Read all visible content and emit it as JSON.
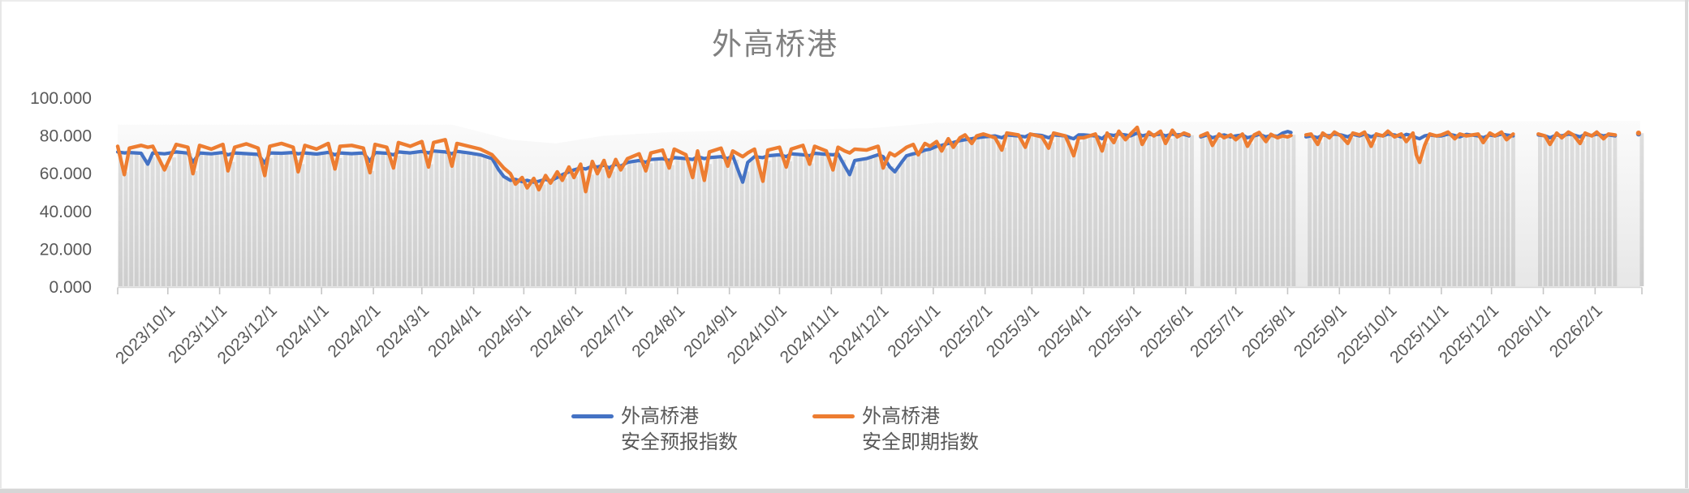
{
  "window": {
    "background": "#ffffff",
    "border_color": "#d9d9d9"
  },
  "chart": {
    "title": "外高桥港",
    "title_color": "#808080",
    "axis_label_color": "#595959",
    "axis_line_color": "#d9d9d9",
    "tick_color": "#c6c6c6",
    "column_color_top": "#dedede",
    "column_color_bottom": "#cdcdcd",
    "band_color_top": "#fbfbfb",
    "band_color_bottom": "#e7e7e7",
    "y_axis": {
      "min": 0,
      "max": 100,
      "tick_values": [
        100,
        80,
        60,
        40,
        20,
        0
      ],
      "tick_labels": [
        "100.000",
        "80.000",
        "60.000",
        "40.000",
        "20.000",
        "0.000"
      ]
    },
    "x_axis": {
      "labels": [
        "2023/10/1",
        "2023/11/1",
        "2023/12/1",
        "2024/1/1",
        "2024/2/1",
        "2024/3/1",
        "2024/4/1",
        "2024/5/1",
        "2024/6/1",
        "2024/7/1",
        "2024/8/1",
        "2024/9/1",
        "2024/10/1",
        "2024/11/1",
        "2024/12/1",
        "2025/1/1",
        "2025/2/1",
        "2025/3/1",
        "2025/4/1",
        "2025/5/1",
        "2025/6/1",
        "2025/7/1",
        "2025/8/1",
        "2025/9/1",
        "2025/10/1",
        "2025/11/1",
        "2025/12/1",
        "2026/1/1",
        "2026/2/1"
      ],
      "label_day_offsets": [
        30,
        61,
        91,
        122,
        153,
        182,
        213,
        243,
        274,
        304,
        335,
        366,
        396,
        427,
        457,
        488,
        519,
        547,
        578,
        608,
        639,
        669,
        700,
        731,
        761,
        792,
        822,
        853,
        884
      ],
      "tick_day_offsets": [
        0,
        30,
        61,
        91,
        122,
        153,
        182,
        213,
        243,
        274,
        304,
        335,
        366,
        396,
        427,
        457,
        488,
        519,
        547,
        578,
        608,
        639,
        669,
        700,
        731,
        761,
        792,
        822,
        853,
        884,
        912
      ],
      "domain_days": [
        0,
        912
      ],
      "domain_note": "day index 0 = 2023/9/1, day 912 = 2026/3/1"
    },
    "legend": {
      "items": [
        {
          "line1": "外高桥港",
          "line2": "安全预报指数",
          "color": "#4472C4"
        },
        {
          "line1": "外高桥港",
          "line2": "安全即期指数",
          "color": "#ED7D31"
        }
      ]
    }
  },
  "chart_data": {
    "type": "line",
    "title": "外高桥港",
    "ylim": [
      0,
      100
    ],
    "x_axis_note": "daily index data; day 0 = 2023-09-01; data runs to 2026-02-28 (day 910) with gaps",
    "legend_position": "bottom",
    "grid": "none",
    "series": [
      {
        "name": "外高桥港安全预报指数",
        "color": "#4472C4"
      },
      {
        "name": "外高桥港安全即期指数",
        "color": "#ED7D31"
      }
    ],
    "rows_format": [
      "day_index",
      "外高桥港安全预报指数",
      "外高桥港安全即期指数"
    ],
    "rows": [
      [
        0,
        71.5,
        74.5
      ],
      [
        4,
        71,
        59.5
      ],
      [
        7,
        71.2,
        73.5
      ],
      [
        14,
        70.8,
        75
      ],
      [
        18,
        65,
        74
      ],
      [
        21,
        71,
        74.5
      ],
      [
        28,
        70.5,
        62
      ],
      [
        35,
        71.5,
        75.5
      ],
      [
        42,
        70.9,
        74
      ],
      [
        45,
        66,
        60
      ],
      [
        49,
        71,
        75
      ],
      [
        56,
        70.5,
        73
      ],
      [
        63,
        71.2,
        75.5
      ],
      [
        66,
        70,
        61.5
      ],
      [
        70,
        71,
        74
      ],
      [
        77,
        70.6,
        75.8
      ],
      [
        84,
        70.2,
        73.5
      ],
      [
        88,
        65.5,
        59
      ],
      [
        91,
        71,
        74.5
      ],
      [
        98,
        70.8,
        76
      ],
      [
        105,
        71.2,
        74
      ],
      [
        108,
        70.5,
        61
      ],
      [
        112,
        71,
        75
      ],
      [
        119,
        70.4,
        73
      ],
      [
        126,
        71.3,
        76
      ],
      [
        130,
        70,
        62.5
      ],
      [
        133,
        71,
        74.5
      ],
      [
        140,
        70.6,
        75
      ],
      [
        147,
        71,
        73.5
      ],
      [
        151,
        66.5,
        60.5
      ],
      [
        154,
        71.2,
        75.5
      ],
      [
        161,
        70.8,
        74
      ],
      [
        165,
        70,
        63
      ],
      [
        168,
        71.5,
        76.5
      ],
      [
        175,
        71,
        74.5
      ],
      [
        182,
        71.8,
        77
      ],
      [
        186,
        71,
        63.5
      ],
      [
        189,
        72,
        76.5
      ],
      [
        196,
        71.5,
        78
      ],
      [
        200,
        70.5,
        64
      ],
      [
        203,
        71.8,
        76
      ],
      [
        210,
        71,
        74.5
      ],
      [
        217,
        70,
        73
      ],
      [
        224,
        68,
        70
      ],
      [
        228,
        62,
        66
      ],
      [
        231,
        58.5,
        63
      ],
      [
        235,
        56.5,
        60
      ],
      [
        238,
        57,
        54.5
      ],
      [
        242,
        55.8,
        58
      ],
      [
        245,
        56.5,
        52.5
      ],
      [
        249,
        55.5,
        57.5
      ],
      [
        252,
        56,
        51.5
      ],
      [
        256,
        57,
        59
      ],
      [
        259,
        56.2,
        55
      ],
      [
        263,
        58,
        61
      ],
      [
        266,
        59.5,
        56.5
      ],
      [
        270,
        61,
        63.5
      ],
      [
        273,
        62,
        58
      ],
      [
        277,
        63,
        65
      ],
      [
        280,
        62.5,
        50.5
      ],
      [
        284,
        64,
        66.5
      ],
      [
        287,
        63.5,
        60
      ],
      [
        291,
        64.5,
        67
      ],
      [
        294,
        63,
        58.5
      ],
      [
        298,
        65,
        67.5
      ],
      [
        301,
        64,
        62
      ],
      [
        305,
        66,
        68
      ],
      [
        312,
        67,
        70.5
      ],
      [
        316,
        66,
        61.5
      ],
      [
        319,
        67.5,
        71
      ],
      [
        326,
        68,
        72.5
      ],
      [
        330,
        67,
        63
      ],
      [
        333,
        68.5,
        73
      ],
      [
        340,
        68,
        70
      ],
      [
        344,
        67.5,
        58
      ],
      [
        347,
        69,
        72
      ],
      [
        351,
        68,
        56.5
      ],
      [
        354,
        68.5,
        71.5
      ],
      [
        361,
        69,
        73.5
      ],
      [
        365,
        68,
        64
      ],
      [
        368,
        69.5,
        72
      ],
      [
        372,
        60,
        70
      ],
      [
        374,
        55.5,
        69
      ],
      [
        377,
        66,
        71
      ],
      [
        381,
        69,
        73
      ],
      [
        386,
        68.5,
        56
      ],
      [
        389,
        69.5,
        72.5
      ],
      [
        396,
        70,
        74
      ],
      [
        400,
        69,
        63.5
      ],
      [
        403,
        70.5,
        73
      ],
      [
        410,
        70,
        75
      ],
      [
        414,
        69.5,
        65
      ],
      [
        417,
        70.8,
        74.5
      ],
      [
        424,
        70.2,
        72
      ],
      [
        428,
        70,
        62
      ],
      [
        431,
        70.5,
        74
      ],
      [
        435,
        64,
        72
      ],
      [
        438,
        59.5,
        71
      ],
      [
        441,
        67,
        73
      ],
      [
        448,
        68,
        72.5
      ],
      [
        455,
        70,
        74.5
      ],
      [
        458,
        69,
        63
      ],
      [
        462,
        63.5,
        71
      ],
      [
        465,
        61,
        69.5
      ],
      [
        469,
        66,
        72
      ],
      [
        472,
        69.5,
        74
      ],
      [
        476,
        70.5,
        75.5
      ],
      [
        479,
        71,
        70
      ],
      [
        483,
        72.5,
        76
      ],
      [
        486,
        73,
        74.5
      ],
      [
        490,
        74.5,
        77
      ],
      [
        493,
        75,
        72
      ],
      [
        497,
        76,
        78.5
      ],
      [
        500,
        76.5,
        74
      ],
      [
        504,
        77.5,
        79
      ],
      [
        507,
        78,
        80.5
      ],
      [
        511,
        78.5,
        76
      ],
      [
        514,
        79,
        80
      ],
      [
        518,
        79.5,
        81
      ],
      [
        525,
        80,
        79
      ],
      [
        529,
        79,
        72.5
      ],
      [
        532,
        80.5,
        81.5
      ],
      [
        539,
        80,
        80.5
      ],
      [
        543,
        79.5,
        74
      ],
      [
        546,
        80.8,
        81
      ],
      [
        553,
        80.2,
        79.5
      ],
      [
        557,
        79,
        73.5
      ],
      [
        560,
        80.5,
        81.5
      ],
      [
        567,
        80,
        80
      ],
      [
        570,
        79,
        74
      ],
      [
        572,
        78.5,
        69.5
      ],
      [
        575,
        80.5,
        79
      ],
      [
        578,
        80.5,
        79
      ],
      [
        585,
        80,
        81
      ],
      [
        589,
        78.5,
        72
      ],
      [
        592,
        80.8,
        81.5
      ],
      [
        596,
        80.2,
        76.5
      ],
      [
        599,
        81,
        82.5
      ],
      [
        603,
        80.5,
        78
      ],
      [
        606,
        80,
        81
      ],
      [
        610,
        81.5,
        84.5
      ],
      [
        613,
        80,
        75.5
      ],
      [
        617,
        80.8,
        82
      ],
      [
        620,
        80.5,
        80
      ],
      [
        624,
        81,
        82.5
      ],
      [
        627,
        80,
        76
      ],
      [
        631,
        81,
        83
      ],
      [
        634,
        80.5,
        79.5
      ],
      [
        638,
        80.8,
        81.5
      ],
      [
        641,
        80,
        80.5
      ],
      [
        645,
        null,
        null
      ],
      [
        648,
        79.5,
        80
      ],
      [
        652,
        80.5,
        81.5
      ],
      [
        655,
        79,
        75
      ],
      [
        659,
        80,
        81
      ],
      [
        662,
        80.5,
        79
      ],
      [
        666,
        79.5,
        80.5
      ],
      [
        669,
        80,
        78
      ],
      [
        673,
        80.5,
        81
      ],
      [
        676,
        79,
        74.5
      ],
      [
        680,
        80,
        80.5
      ],
      [
        683,
        80.8,
        81.8
      ],
      [
        687,
        79.5,
        77
      ],
      [
        690,
        80.2,
        80.8
      ],
      [
        694,
        79.8,
        79
      ],
      [
        697,
        81.5,
        80
      ],
      [
        700,
        82.3,
        79.5
      ],
      [
        702,
        81.8,
        80.2
      ],
      [
        705,
        null,
        null
      ],
      [
        711,
        79.5,
        80.5
      ],
      [
        714,
        80,
        81
      ],
      [
        718,
        79,
        75.5
      ],
      [
        721,
        80.5,
        81.5
      ],
      [
        725,
        80,
        79
      ],
      [
        728,
        81,
        82
      ],
      [
        732,
        80.5,
        80
      ],
      [
        736,
        79.5,
        76
      ],
      [
        739,
        80.8,
        81.5
      ],
      [
        743,
        80,
        80.5
      ],
      [
        746,
        81,
        82
      ],
      [
        750,
        79.5,
        74.5
      ],
      [
        753,
        80.5,
        81
      ],
      [
        757,
        80,
        80
      ],
      [
        760,
        81,
        82.5
      ],
      [
        764,
        80.5,
        79.5
      ],
      [
        768,
        79.5,
        81
      ],
      [
        771,
        80.8,
        77
      ],
      [
        775,
        80,
        81.5
      ],
      [
        777,
        79,
        70
      ],
      [
        779,
        78.5,
        66
      ],
      [
        782,
        80,
        75
      ],
      [
        785,
        80.5,
        81
      ],
      [
        789,
        80,
        80
      ],
      [
        792,
        80,
        80.5
      ],
      [
        796,
        81,
        82
      ],
      [
        800,
        80.2,
        78.5
      ],
      [
        803,
        79.5,
        81
      ],
      [
        807,
        80.8,
        80
      ],
      [
        814,
        80,
        81
      ],
      [
        817,
        79,
        76.5
      ],
      [
        821,
        80.5,
        81.5
      ],
      [
        824,
        80,
        80
      ],
      [
        828,
        81,
        82
      ],
      [
        831,
        80.5,
        78
      ],
      [
        835,
        80,
        81
      ],
      [
        842,
        null,
        null
      ],
      [
        850,
        80.5,
        81
      ],
      [
        854,
        80,
        80
      ],
      [
        857,
        79,
        75.5
      ],
      [
        861,
        80.5,
        81.5
      ],
      [
        864,
        80,
        79
      ],
      [
        868,
        81,
        82
      ],
      [
        871,
        80.5,
        80.5
      ],
      [
        875,
        79.5,
        76
      ],
      [
        878,
        80.8,
        81.5
      ],
      [
        882,
        80.2,
        80
      ],
      [
        885,
        81,
        82
      ],
      [
        889,
        80,
        78.5
      ],
      [
        892,
        80.5,
        81
      ],
      [
        896,
        80,
        80.5
      ],
      [
        902,
        null,
        null
      ],
      [
        910,
        81,
        81.5
      ]
    ],
    "data_gaps_day_ranges": [
      [
        642.5,
        647.5
      ],
      [
        703,
        710
      ],
      [
        836.5,
        849.5
      ],
      [
        897.5,
        908.5
      ]
    ],
    "background_band_day_value": [
      [
        0,
        86
      ],
      [
        200,
        86
      ],
      [
        235,
        78
      ],
      [
        262,
        76
      ],
      [
        290,
        80
      ],
      [
        330,
        82
      ],
      [
        380,
        83
      ],
      [
        450,
        84
      ],
      [
        490,
        87
      ],
      [
        911,
        88
      ]
    ]
  }
}
